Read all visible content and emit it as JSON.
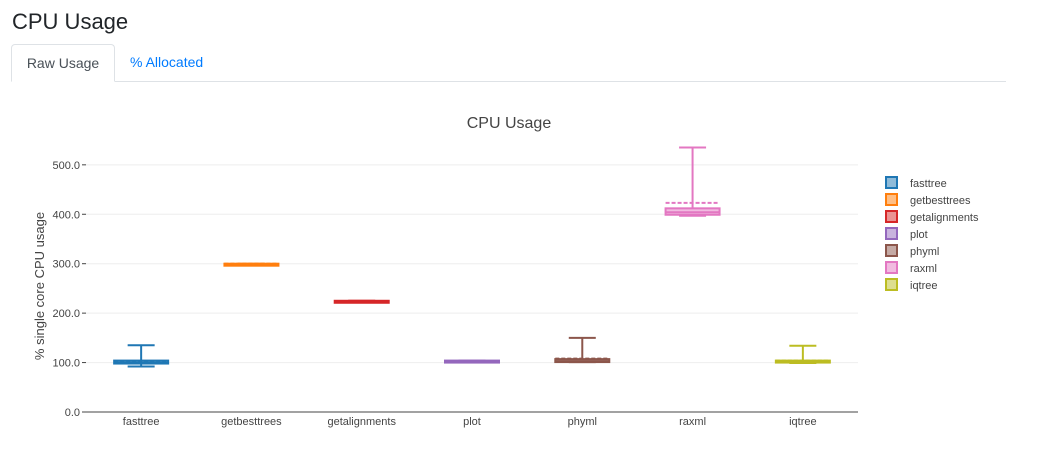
{
  "page": {
    "title": "CPU Usage"
  },
  "tabs": [
    {
      "label": "Raw Usage",
      "active": true
    },
    {
      "label": "% Allocated",
      "active": false
    }
  ],
  "chart_data": {
    "type": "box",
    "title": "CPU Usage",
    "ylabel": "% single core CPU usage",
    "xlabel": "",
    "ylim": [
      0,
      530
    ],
    "yticks": [
      0,
      100,
      200,
      300,
      400,
      500
    ],
    "ytick_labels": [
      "0.0",
      "100.0",
      "200.0",
      "300.0",
      "400.0",
      "500.0"
    ],
    "grid": true,
    "legend_position": "right",
    "series": [
      {
        "name": "fasttree",
        "color": "#1f77b4",
        "min": 92,
        "q1": 98,
        "median": 100,
        "q3": 104,
        "max": 135,
        "mean": 102
      },
      {
        "name": "getbesttrees",
        "color": "#ff7f0e",
        "min": 299,
        "q1": 299,
        "median": 299,
        "q3": 300,
        "max": 300,
        "mean": 300
      },
      {
        "name": "getalignments",
        "color": "#d62728",
        "min": 223,
        "q1": 223,
        "median": 224,
        "q3": 225,
        "max": 225,
        "mean": 224
      },
      {
        "name": "plot",
        "color": "#9467bd",
        "min": 103,
        "q1": 103,
        "median": 103,
        "q3": 104,
        "max": 104,
        "mean": 103
      },
      {
        "name": "phyml",
        "color": "#8c564b",
        "min": 101,
        "q1": 101,
        "median": 103,
        "q3": 107,
        "max": 150,
        "mean": 108
      },
      {
        "name": "raxml",
        "color": "#e377c2",
        "min": 397,
        "q1": 399,
        "median": 404,
        "q3": 412,
        "max": 535,
        "mean": 423
      },
      {
        "name": "iqtree",
        "color": "#bcbd22",
        "min": 99,
        "q1": 100,
        "median": 102,
        "q3": 104,
        "max": 134,
        "mean": 104
      }
    ]
  }
}
